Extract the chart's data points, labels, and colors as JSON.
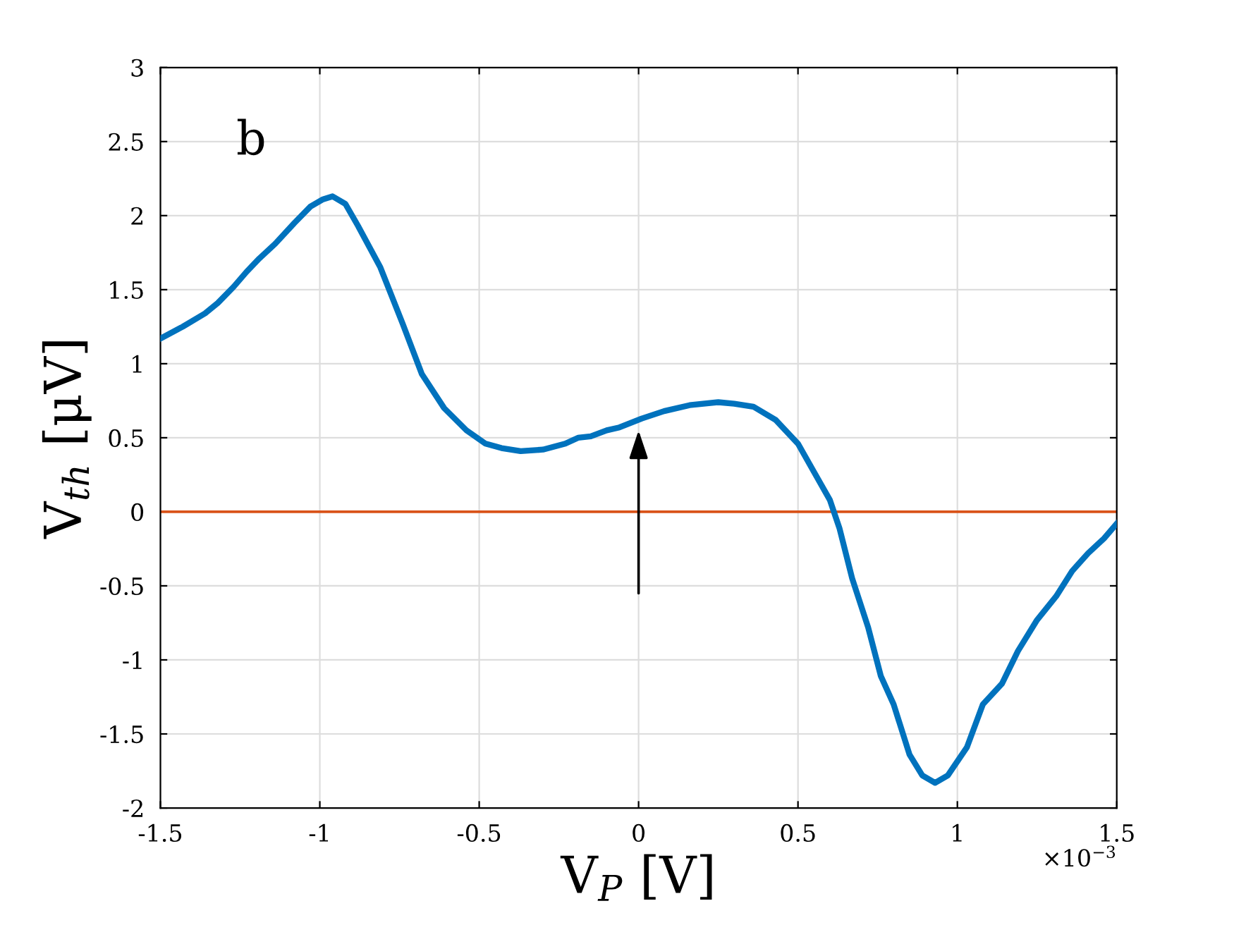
{
  "chart_data": {
    "type": "line",
    "xlabel": "V$_{P}$ [V]",
    "ylabel": "V$_{th}$ [μV]",
    "x": [
      -1.5,
      -1.43,
      -1.36,
      -1.32,
      -1.27,
      -1.23,
      -1.19,
      -1.14,
      -1.08,
      -1.03,
      -0.99,
      -0.96,
      -0.92,
      -0.88,
      -0.81,
      -0.74,
      -0.68,
      -0.61,
      -0.54,
      -0.48,
      -0.43,
      -0.37,
      -0.3,
      -0.23,
      -0.19,
      -0.15,
      -0.1,
      -0.06,
      0.01,
      0.08,
      0.16,
      0.25,
      0.3,
      0.36,
      0.43,
      0.5,
      0.55,
      0.6,
      0.63,
      0.67,
      0.72,
      0.76,
      0.8,
      0.85,
      0.89,
      0.93,
      0.97,
      1.03,
      1.08,
      1.14,
      1.19,
      1.25,
      1.31,
      1.36,
      1.41,
      1.46,
      1.5
    ],
    "series": [
      {
        "color": "#0072bd",
        "values": [
          1.17,
          1.25,
          1.34,
          1.41,
          1.52,
          1.62,
          1.71,
          1.81,
          1.95,
          2.06,
          2.11,
          2.13,
          2.08,
          1.93,
          1.65,
          1.27,
          0.93,
          0.7,
          0.55,
          0.46,
          0.43,
          0.41,
          0.42,
          0.46,
          0.5,
          0.51,
          0.55,
          0.57,
          0.63,
          0.68,
          0.72,
          0.74,
          0.73,
          0.71,
          0.62,
          0.46,
          0.27,
          0.08,
          -0.11,
          -0.45,
          -0.78,
          -1.11,
          -1.3,
          -1.64,
          -1.78,
          -1.83,
          -1.78,
          -1.59,
          -1.3,
          -1.16,
          -0.94,
          -0.73,
          -0.57,
          -0.4,
          -0.28,
          -0.18,
          -0.08
        ]
      }
    ],
    "xlim": [
      -1.5,
      1.5
    ],
    "xticks": [
      -1.5,
      -1,
      -0.5,
      0,
      0.5,
      1,
      1.5
    ],
    "ylim": [
      -2,
      3
    ],
    "yticks": [
      -2,
      -1.5,
      -1,
      -0.5,
      0,
      0.5,
      1,
      1.5,
      2,
      2.5,
      3
    ],
    "ref_lines": [
      {
        "axis": "y",
        "value": 0,
        "color": "#d95319"
      }
    ],
    "annotations": [
      "b",
      "×10$^{−3}$"
    ],
    "grid": true,
    "line_style": "solid",
    "marker": "none"
  }
}
